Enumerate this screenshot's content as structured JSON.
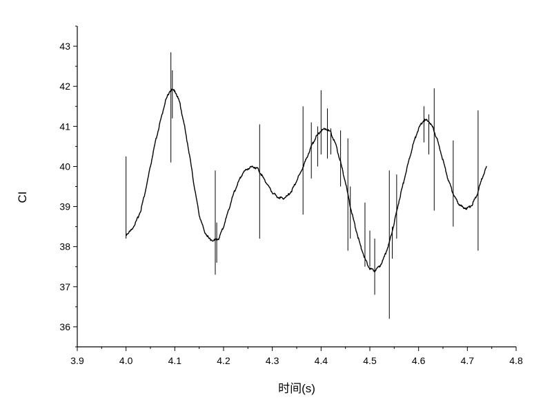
{
  "chart_data": {
    "type": "line",
    "title": "",
    "xlabel": "时间(s)",
    "ylabel": "CI",
    "xlim": [
      3.9,
      4.8
    ],
    "ylim": [
      35.5,
      43.5
    ],
    "x_ticks": [
      3.9,
      4.0,
      4.1,
      4.2,
      4.3,
      4.4,
      4.5,
      4.6,
      4.7,
      4.8
    ],
    "x_tick_labels": [
      "3.9",
      "4.0",
      "4.1",
      "4.2",
      "4.3",
      "4.4",
      "4.5",
      "4.6",
      "4.7",
      "4.8"
    ],
    "y_ticks": [
      36,
      37,
      38,
      39,
      40,
      41,
      42,
      43
    ],
    "y_tick_labels": [
      "36",
      "37",
      "38",
      "39",
      "40",
      "41",
      "42",
      "43"
    ],
    "grid": false,
    "legend": "none",
    "line_color": "#000000",
    "series": [
      {
        "x": [
          4.0,
          4.01,
          4.02,
          4.03,
          4.04,
          4.05,
          4.06,
          4.07,
          4.08,
          4.09,
          4.1,
          4.11,
          4.12,
          4.13,
          4.14,
          4.15,
          4.16,
          4.17,
          4.18,
          4.19,
          4.2,
          4.21,
          4.22,
          4.23,
          4.24,
          4.25,
          4.26,
          4.27,
          4.28,
          4.29,
          4.3,
          4.31,
          4.32,
          4.33,
          4.34,
          4.35,
          4.36,
          4.37,
          4.38,
          4.39,
          4.4,
          4.41,
          4.42,
          4.43,
          4.44,
          4.45,
          4.46,
          4.47,
          4.48,
          4.49,
          4.5,
          4.51,
          4.52,
          4.53,
          4.54,
          4.55,
          4.56,
          4.57,
          4.58,
          4.59,
          4.6,
          4.61,
          4.62,
          4.63,
          4.64,
          4.65,
          4.66,
          4.67,
          4.68,
          4.69,
          4.7,
          4.71,
          4.72,
          4.73,
          4.74
        ],
        "y": [
          38.3,
          38.4,
          38.6,
          38.9,
          39.4,
          40.0,
          40.6,
          41.1,
          41.6,
          41.9,
          41.9,
          41.6,
          41.0,
          40.3,
          39.5,
          38.8,
          38.4,
          38.2,
          38.15,
          38.2,
          38.5,
          38.9,
          39.3,
          39.6,
          39.85,
          39.95,
          40.0,
          39.95,
          39.75,
          39.55,
          39.35,
          39.25,
          39.2,
          39.25,
          39.4,
          39.65,
          39.9,
          40.2,
          40.5,
          40.75,
          40.9,
          40.95,
          40.85,
          40.55,
          40.1,
          39.6,
          39.0,
          38.5,
          38.05,
          37.7,
          37.45,
          37.4,
          37.5,
          37.75,
          38.1,
          38.6,
          39.15,
          39.65,
          40.15,
          40.6,
          40.95,
          41.15,
          41.15,
          40.95,
          40.6,
          40.15,
          39.7,
          39.35,
          39.1,
          38.98,
          38.95,
          39.05,
          39.3,
          39.7,
          40.0
        ]
      }
    ],
    "spikes": [
      {
        "x": 4.0,
        "y_low": 38.2,
        "y_high": 40.25
      },
      {
        "x": 4.092,
        "y_low": 40.1,
        "y_high": 42.85
      },
      {
        "x": 4.095,
        "y_low": 41.2,
        "y_high": 42.4
      },
      {
        "x": 4.183,
        "y_low": 37.3,
        "y_high": 39.9
      },
      {
        "x": 4.186,
        "y_low": 37.6,
        "y_high": 38.6
      },
      {
        "x": 4.274,
        "y_low": 38.2,
        "y_high": 41.05
      },
      {
        "x": 4.363,
        "y_low": 38.8,
        "y_high": 41.5
      },
      {
        "x": 4.38,
        "y_low": 39.7,
        "y_high": 41.1
      },
      {
        "x": 4.393,
        "y_low": 40.0,
        "y_high": 41.0
      },
      {
        "x": 4.4,
        "y_low": 40.3,
        "y_high": 41.9
      },
      {
        "x": 4.413,
        "y_low": 40.2,
        "y_high": 41.45
      },
      {
        "x": 4.42,
        "y_low": 40.3,
        "y_high": 40.95
      },
      {
        "x": 4.44,
        "y_low": 39.5,
        "y_high": 40.9
      },
      {
        "x": 4.455,
        "y_low": 37.9,
        "y_high": 40.7
      },
      {
        "x": 4.46,
        "y_low": 38.2,
        "y_high": 39.5
      },
      {
        "x": 4.49,
        "y_low": 37.5,
        "y_high": 39.1
      },
      {
        "x": 4.5,
        "y_low": 37.5,
        "y_high": 38.4
      },
      {
        "x": 4.51,
        "y_low": 36.8,
        "y_high": 38.2
      },
      {
        "x": 4.54,
        "y_low": 36.2,
        "y_high": 39.9
      },
      {
        "x": 4.546,
        "y_low": 37.7,
        "y_high": 38.5
      },
      {
        "x": 4.555,
        "y_low": 38.2,
        "y_high": 39.8
      },
      {
        "x": 4.611,
        "y_low": 40.6,
        "y_high": 41.5
      },
      {
        "x": 4.621,
        "y_low": 40.3,
        "y_high": 41.3
      },
      {
        "x": 4.632,
        "y_low": 38.9,
        "y_high": 41.95
      },
      {
        "x": 4.671,
        "y_low": 38.5,
        "y_high": 40.65
      },
      {
        "x": 4.722,
        "y_low": 37.9,
        "y_high": 41.4
      }
    ]
  }
}
